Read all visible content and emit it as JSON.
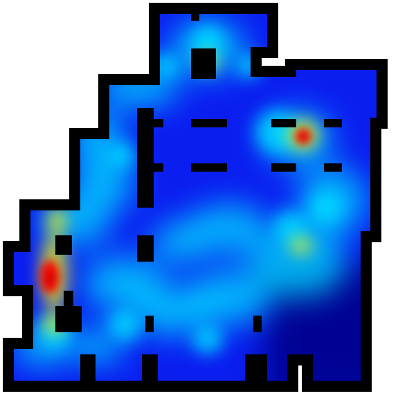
{
  "map": {
    "kind": "occupancy heatmap on floor plan",
    "colormap": "jet",
    "background_color": "#ffffff",
    "wall_color": "#000000",
    "base_floor_color": "#0a1ef0",
    "colors": {
      "low": "#00008b",
      "mid_low": "#0050ff",
      "mid": "#00e0ff",
      "mid_high": "#ffff00",
      "high": "#ff0000",
      "peak": "#b00000"
    }
  }
}
